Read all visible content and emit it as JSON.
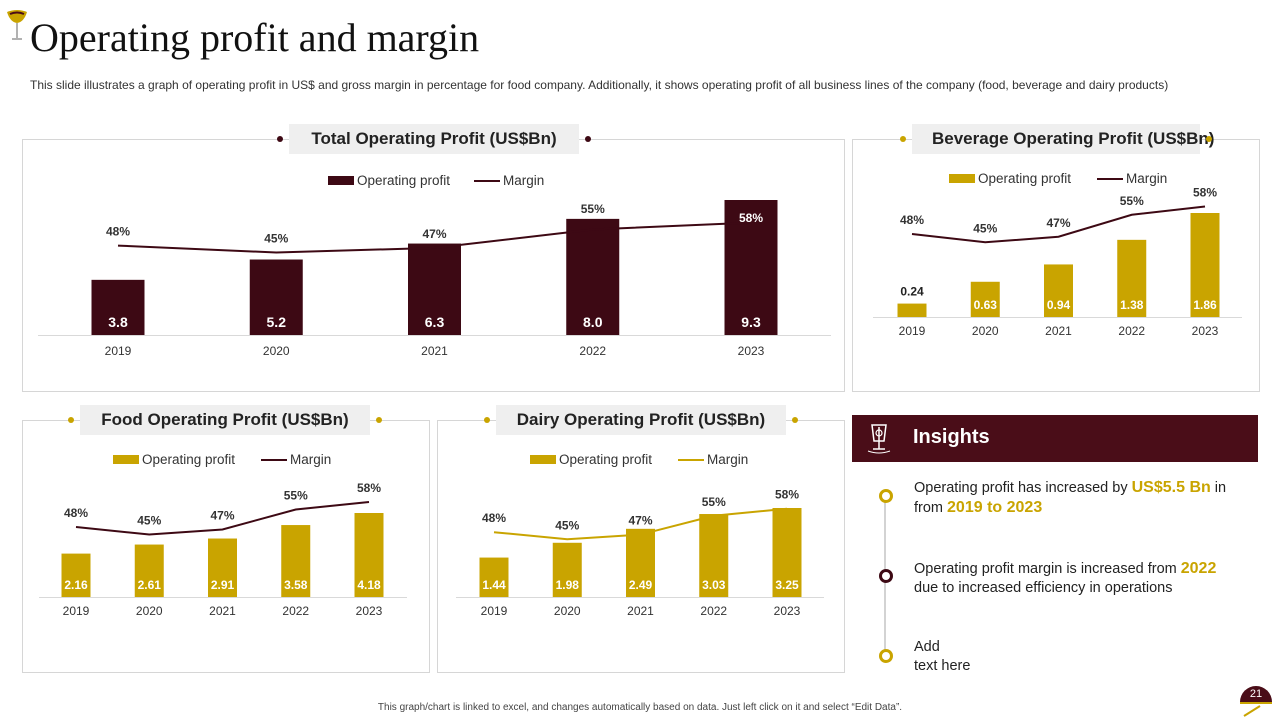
{
  "header": {
    "title": "Operating profit and margin",
    "subtitle": "This slide illustrates a graph of operating profit in US$ and gross margin in percentage for food company. Additionally, it shows operating profit of all business lines of the company (food, beverage and dairy products)"
  },
  "colors": {
    "maroon": "#3d0914",
    "gold": "#c9a400",
    "line_dark": "#3d0914"
  },
  "chart_data": [
    {
      "id": "total",
      "type": "bar",
      "title": "Total Operating Profit (US$Bn)",
      "categories": [
        "2019",
        "2020",
        "2021",
        "2022",
        "2023"
      ],
      "series": [
        {
          "name": "Operating profit",
          "values": [
            3.8,
            5.2,
            6.3,
            8.0,
            9.3
          ],
          "labels": [
            "3.8",
            "5.2",
            "6.3",
            "8.0",
            "9.3"
          ]
        },
        {
          "name": "Margin",
          "values": [
            48,
            45,
            47,
            55,
            58
          ],
          "labels": [
            "48%",
            "45%",
            "47%",
            "55%",
            "58%"
          ]
        }
      ],
      "ylim": [
        0,
        9.3
      ],
      "margin_range": [
        0,
        100
      ]
    },
    {
      "id": "beverage",
      "type": "bar",
      "title": "Beverage Operating Profit (US$Bn)",
      "categories": [
        "2019",
        "2020",
        "2021",
        "2022",
        "2023"
      ],
      "series": [
        {
          "name": "Operating profit",
          "values": [
            0.24,
            0.63,
            0.94,
            1.38,
            1.86
          ],
          "labels": [
            "0.24",
            "0.63",
            "0.94",
            "1.38",
            "1.86"
          ]
        },
        {
          "name": "Margin",
          "values": [
            48,
            45,
            47,
            55,
            58
          ],
          "labels": [
            "48%",
            "45%",
            "47%",
            "55%",
            "58%"
          ]
        }
      ],
      "ylim": [
        0,
        1.86
      ],
      "margin_range": [
        0,
        100
      ]
    },
    {
      "id": "food",
      "type": "bar",
      "title": "Food Operating Profit (US$Bn)",
      "categories": [
        "2019",
        "2020",
        "2021",
        "2022",
        "2023"
      ],
      "series": [
        {
          "name": "Operating profit",
          "values": [
            2.16,
            2.61,
            2.91,
            3.58,
            4.18
          ],
          "labels": [
            "2.16",
            "2.61",
            "2.91",
            "3.58",
            "4.18"
          ]
        },
        {
          "name": "Margin",
          "values": [
            48,
            45,
            47,
            55,
            58
          ],
          "labels": [
            "48%",
            "45%",
            "47%",
            "55%",
            "58%"
          ]
        }
      ],
      "ylim": [
        0,
        4.18
      ],
      "margin_range": [
        0,
        100
      ]
    },
    {
      "id": "dairy",
      "type": "bar",
      "title": "Dairy Operating Profit (US$Bn)",
      "categories": [
        "2019",
        "2020",
        "2021",
        "2022",
        "2023"
      ],
      "series": [
        {
          "name": "Operating profit",
          "values": [
            1.44,
            1.98,
            2.49,
            3.03,
            3.25
          ],
          "labels": [
            "1.44",
            "1.98",
            "2.49",
            "3.03",
            "3.25"
          ]
        },
        {
          "name": "Margin",
          "values": [
            48,
            45,
            47,
            55,
            58
          ],
          "labels": [
            "48%",
            "45%",
            "47%",
            "55%",
            "58%"
          ]
        }
      ],
      "ylim": [
        0,
        3.25
      ],
      "margin_range": [
        0,
        100
      ]
    }
  ],
  "insights": {
    "title": "Insights",
    "items": [
      {
        "pre": "Operating profit has increased by ",
        "hl1": "US$5.5 Bn",
        "mid": " in from ",
        "hl2": "2019 to 2023"
      },
      {
        "pre": "Operating profit margin is increased from ",
        "hl1": "2022",
        "post": " due to increased efficiency in operations"
      },
      {
        "line1": "Add",
        "line2": "text here"
      }
    ]
  },
  "footer": {
    "note": "This graph/chart is linked to excel, and changes automatically based on data. Just left click on it and select “Edit Data”.",
    "page": "21"
  }
}
